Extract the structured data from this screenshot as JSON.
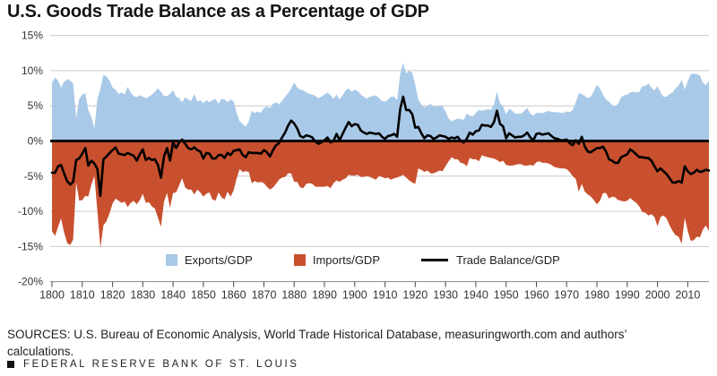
{
  "title": "U.S. Goods Trade Balance as a Percentage of GDP",
  "sources": "SOURCES: U.S. Bureau of Economic Analysis, World Trade Historical Database, measuringworth.com and authors’ calculations.",
  "footer": {
    "org": "FEDERAL RESERVE BANK OF ST. LOUIS"
  },
  "legend": [
    {
      "label": "Exports/GDP",
      "swatch": "square",
      "color": "#a9c9e8"
    },
    {
      "label": "Imports/GDP",
      "swatch": "square",
      "color": "#c8502e"
    },
    {
      "label": "Trade Balance/GDP",
      "swatch": "line",
      "color": "#000000"
    }
  ],
  "chart_data": {
    "type": "area",
    "title": "U.S. Goods Trade Balance as a Percentage of GDP",
    "units": "percent of GDP, annual",
    "x_start_year": 1800,
    "x_end_year": 2017,
    "ylim": [
      -20,
      15
    ],
    "grid": "horizontal gridlines every 5%, zero line emphasized in black",
    "legend_position": "bottom-inside",
    "colors": {
      "exports_fill": "#a9c9e8",
      "imports_fill": "#c8502e",
      "balance_line": "#000000",
      "gridline": "#c9c9c9",
      "axis_line": "#888888",
      "tick_text": "#333333"
    },
    "y_ticks": [
      {
        "value": 15,
        "label": "15%"
      },
      {
        "value": 10,
        "label": "10%"
      },
      {
        "value": 5,
        "label": "5%"
      },
      {
        "value": 0,
        "label": "0%"
      },
      {
        "value": -5,
        "label": "-5%"
      },
      {
        "value": -10,
        "label": "-10%"
      },
      {
        "value": -15,
        "label": "-15%"
      },
      {
        "value": -20,
        "label": "-20%"
      }
    ],
    "x_tick_years": [
      1800,
      1810,
      1820,
      1830,
      1840,
      1850,
      1860,
      1870,
      1880,
      1890,
      1900,
      1910,
      1920,
      1930,
      1940,
      1950,
      1960,
      1970,
      1980,
      1990,
      2000,
      2010
    ],
    "series": [
      {
        "name": "Exports/GDP",
        "type": "area",
        "plotted": "above zero",
        "values": [
          8.3,
          9.0,
          8.6,
          7.6,
          8.4,
          8.8,
          8.6,
          8.2,
          3.2,
          6.0,
          6.6,
          6.8,
          4.4,
          3.4,
          1.8,
          6.0,
          7.4,
          9.4,
          9.2,
          8.6,
          7.6,
          7.3,
          6.7,
          6.9,
          6.6,
          7.7,
          6.9,
          6.4,
          6.2,
          6.5,
          6.3,
          6.1,
          6.3,
          6.6,
          7.0,
          7.5,
          7.0,
          6.4,
          6.4,
          6.7,
          7.2,
          6.3,
          6.1,
          5.5,
          6.2,
          5.9,
          5.7,
          6.7,
          5.6,
          5.8,
          5.4,
          5.8,
          5.5,
          5.8,
          6.0,
          5.3,
          6.0,
          5.9,
          5.5,
          5.9,
          5.6,
          4.0,
          2.8,
          2.4,
          2.0,
          2.8,
          4.3,
          4.0,
          4.2,
          4.0,
          4.7,
          4.9,
          4.7,
          5.3,
          5.5,
          5.2,
          5.7,
          6.3,
          6.8,
          7.5,
          8.3,
          7.6,
          7.3,
          7.2,
          6.9,
          6.7,
          6.6,
          6.4,
          6.1,
          6.3,
          6.6,
          6.9,
          6.5,
          6.0,
          6.6,
          5.9,
          6.5,
          7.2,
          7.5,
          7.0,
          7.3,
          7.1,
          6.6,
          6.3,
          6.0,
          6.3,
          6.4,
          6.5,
          6.1,
          5.7,
          5.6,
          5.9,
          6.3,
          6.3,
          5.8,
          9.5,
          11.1,
          9.6,
          10.0,
          9.7,
          8.0,
          5.9,
          5.2,
          4.8,
          5.0,
          5.3,
          4.9,
          4.9,
          5.0,
          5.0,
          4.2,
          3.2,
          2.8,
          3.0,
          3.2,
          3.1,
          3.0,
          3.9,
          3.6,
          3.5,
          4.0,
          4.4,
          4.3,
          4.4,
          4.5,
          4.4,
          5.2,
          7.0,
          5.4,
          4.9,
          3.8,
          4.6,
          4.3,
          3.9,
          3.9,
          3.9,
          4.3,
          4.7,
          3.9,
          3.6,
          4.0,
          4.0,
          4.0,
          4.1,
          4.3,
          4.1,
          4.1,
          4.1,
          4.0,
          4.0,
          4.2,
          4.1,
          4.4,
          5.5,
          6.8,
          6.7,
          6.4,
          6.1,
          6.3,
          7.1,
          8.0,
          7.5,
          6.6,
          5.9,
          5.6,
          5.1,
          4.9,
          5.3,
          6.2,
          6.5,
          6.6,
          6.9,
          7.0,
          6.9,
          7.0,
          7.8,
          7.8,
          8.2,
          7.6,
          7.2,
          7.8,
          6.9,
          6.3,
          6.3,
          6.7,
          6.9,
          7.5,
          7.9,
          8.7,
          7.3,
          8.5,
          9.5,
          9.6,
          9.5,
          9.3,
          8.3,
          7.9,
          8.6
        ]
      },
      {
        "name": "Imports/GDP",
        "type": "area",
        "plotted": "below zero (magnitudes shown here, drawn as negative)",
        "values": [
          12.8,
          13.5,
          12.2,
          11.0,
          13.0,
          14.5,
          14.8,
          14.0,
          5.9,
          8.5,
          8.4,
          7.8,
          7.9,
          6.2,
          5.0,
          10.0,
          15.2,
          12.0,
          11.4,
          10.3,
          8.9,
          8.2,
          8.5,
          8.8,
          8.6,
          9.4,
          8.8,
          8.5,
          9.0,
          8.4,
          7.5,
          8.8,
          8.7,
          9.3,
          9.6,
          10.9,
          12.2,
          8.6,
          7.4,
          9.5,
          7.4,
          7.3,
          6.3,
          5.3,
          6.6,
          6.9,
          6.9,
          7.6,
          6.9,
          7.3,
          7.9,
          7.5,
          7.3,
          8.3,
          8.5,
          7.3,
          8.0,
          8.3,
          7.2,
          7.9,
          7.0,
          5.3,
          4.0,
          4.4,
          4.3,
          4.4,
          6.0,
          5.7,
          5.9,
          5.8,
          6.0,
          6.5,
          6.9,
          6.6,
          6.1,
          5.5,
          5.2,
          5.1,
          4.6,
          4.6,
          5.8,
          5.8,
          6.6,
          6.7,
          6.1,
          6.0,
          6.1,
          6.5,
          6.5,
          6.5,
          6.5,
          6.4,
          6.7,
          6.0,
          5.6,
          5.8,
          5.5,
          5.3,
          4.8,
          4.9,
          4.9,
          4.8,
          5.1,
          5.1,
          5.0,
          5.1,
          5.3,
          5.5,
          5.0,
          5.1,
          5.3,
          5.2,
          5.5,
          5.3,
          5.2,
          5.0,
          4.8,
          5.2,
          5.6,
          5.9,
          6.1,
          3.9,
          4.1,
          4.4,
          4.2,
          4.6,
          4.6,
          4.4,
          4.2,
          4.3,
          3.6,
          2.9,
          2.3,
          2.6,
          2.6,
          3.1,
          3.2,
          3.6,
          2.4,
          2.6,
          2.6,
          2.9,
          2.0,
          2.2,
          2.3,
          2.4,
          2.5,
          2.7,
          3.0,
          2.8,
          3.4,
          3.5,
          3.5,
          3.4,
          3.3,
          3.3,
          3.5,
          3.5,
          3.4,
          3.5,
          3.0,
          2.9,
          3.1,
          3.1,
          3.2,
          3.4,
          3.7,
          3.8,
          3.9,
          3.9,
          4.0,
          4.4,
          5.0,
          5.4,
          7.2,
          6.1,
          7.2,
          7.6,
          7.9,
          8.4,
          9.0,
          8.5,
          7.4,
          7.4,
          8.2,
          7.9,
          8.0,
          8.4,
          8.5,
          8.6,
          8.5,
          8.1,
          8.5,
          8.8,
          9.3,
          10.1,
          10.2,
          10.6,
          10.4,
          10.8,
          12.1,
          10.8,
          10.6,
          11.0,
          12.0,
          12.8,
          13.4,
          13.6,
          14.6,
          10.9,
          12.8,
          14.2,
          14.1,
          13.6,
          13.7,
          12.6,
          12.0,
          12.8
        ]
      },
      {
        "name": "Trade Balance/GDP",
        "type": "line",
        "note": "equals Exports/GDP minus Imports/GDP",
        "values": [
          -4.5,
          -4.5,
          -3.6,
          -3.4,
          -4.6,
          -5.7,
          -6.2,
          -5.8,
          -2.7,
          -2.5,
          -1.8,
          -1.0,
          -3.5,
          -2.8,
          -3.2,
          -4.0,
          -7.8,
          -2.6,
          -2.2,
          -1.7,
          -1.3,
          -0.9,
          -1.8,
          -1.9,
          -2.0,
          -1.7,
          -1.9,
          -2.1,
          -2.8,
          -1.9,
          -1.2,
          -2.7,
          -2.4,
          -2.7,
          -2.6,
          -3.4,
          -5.2,
          -2.2,
          -1.0,
          -2.8,
          -0.2,
          -1.0,
          -0.2,
          0.2,
          -0.4,
          -1.0,
          -1.2,
          -0.9,
          -1.3,
          -1.5,
          -2.5,
          -1.7,
          -1.8,
          -2.5,
          -2.5,
          -2.0,
          -2.0,
          -2.4,
          -1.7,
          -2.0,
          -1.4,
          -1.3,
          -1.2,
          -2.0,
          -2.3,
          -1.6,
          -1.7,
          -1.7,
          -1.7,
          -1.8,
          -1.3,
          -1.6,
          -2.2,
          -1.3,
          -0.6,
          -0.3,
          0.5,
          1.2,
          2.2,
          2.9,
          2.5,
          1.8,
          0.7,
          0.5,
          0.8,
          0.7,
          0.5,
          -0.1,
          -0.4,
          -0.2,
          0.1,
          0.5,
          -0.2,
          0.0,
          1.0,
          0.1,
          1.0,
          1.9,
          2.7,
          2.1,
          2.4,
          2.3,
          1.5,
          1.2,
          1.0,
          1.2,
          1.1,
          1.0,
          1.1,
          0.6,
          0.3,
          0.7,
          0.8,
          1.0,
          0.6,
          4.5,
          6.3,
          4.4,
          4.4,
          3.8,
          1.9,
          2.0,
          1.1,
          0.4,
          0.8,
          0.7,
          0.3,
          0.5,
          0.8,
          0.7,
          0.6,
          0.3,
          0.5,
          0.4,
          0.6,
          0.0,
          -0.2,
          0.3,
          1.2,
          0.9,
          1.4,
          1.5,
          2.3,
          2.2,
          2.2,
          2.0,
          2.7,
          4.3,
          2.4,
          2.1,
          0.4,
          1.1,
          0.8,
          0.5,
          0.6,
          0.6,
          0.8,
          1.2,
          0.5,
          0.1,
          1.0,
          1.1,
          0.9,
          1.0,
          1.1,
          0.7,
          0.4,
          0.3,
          0.1,
          0.1,
          0.2,
          -0.3,
          -0.6,
          0.1,
          -0.4,
          0.6,
          -0.8,
          -1.5,
          -1.6,
          -1.3,
          -1.0,
          -1.0,
          -0.8,
          -1.5,
          -2.6,
          -2.8,
          -3.1,
          -3.1,
          -2.3,
          -2.1,
          -1.9,
          -1.2,
          -1.5,
          -1.9,
          -2.3,
          -2.3,
          -2.4,
          -2.4,
          -2.8,
          -3.6,
          -4.3,
          -3.9,
          -4.3,
          -4.7,
          -5.3,
          -5.9,
          -5.9,
          -5.7,
          -5.9,
          -3.6,
          -4.3,
          -4.7,
          -4.5,
          -4.1,
          -4.4,
          -4.3,
          -4.1,
          -4.2
        ]
      }
    ]
  }
}
